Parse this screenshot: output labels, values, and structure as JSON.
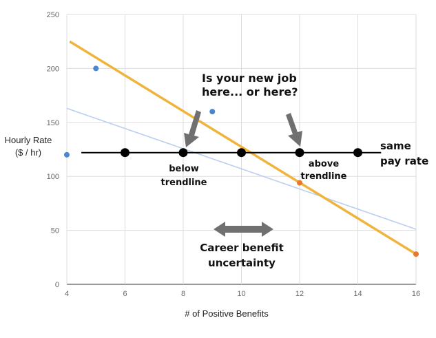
{
  "chart_data": {
    "type": "scatter",
    "title": "",
    "xlabel": "# of Positive Benefits",
    "ylabel_lines": [
      "Hourly Rate",
      "($ / hr)"
    ],
    "xlim": [
      4,
      16
    ],
    "ylim": [
      0,
      250
    ],
    "x_ticks": [
      4,
      6,
      8,
      10,
      12,
      14,
      16
    ],
    "y_ticks": [
      0,
      50,
      100,
      150,
      200,
      250
    ],
    "grid": true,
    "legend": "none",
    "points": [
      {
        "x": 4,
        "y": 120,
        "color": "#4a86d2"
      },
      {
        "x": 5,
        "y": 200,
        "color": "#4a86d2"
      },
      {
        "x": 9,
        "y": 160,
        "color": "#4a86d2"
      },
      {
        "x": 12,
        "y": 94,
        "color": "#e8782e"
      },
      {
        "x": 16,
        "y": 28,
        "color": "#e8782e"
      }
    ],
    "trendlines": [
      {
        "x": [
          4,
          16
        ],
        "y": [
          163,
          51
        ],
        "color": "#b9cff0",
        "width": 1.6
      },
      {
        "x": [
          4.1,
          16
        ],
        "y": [
          225,
          28
        ],
        "color": "#f0b43c",
        "width": 3.5
      }
    ],
    "same_pay_line": {
      "y": 122,
      "x_from": 4.5,
      "x_to": 14.8,
      "color": "#000000"
    },
    "same_pay_points": [
      6,
      8,
      10,
      12,
      14
    ],
    "annotations": {
      "question_lines": [
        "Is your new job",
        "here... or here?"
      ],
      "below_lines": [
        "below",
        "trendline"
      ],
      "above_lines": [
        "above",
        "trendline"
      ],
      "same_pay_lines": [
        "same",
        "pay rate"
      ],
      "uncertainty_lines": [
        "Career benefit",
        "uncertainty"
      ]
    },
    "arrow_color": "#707070"
  }
}
